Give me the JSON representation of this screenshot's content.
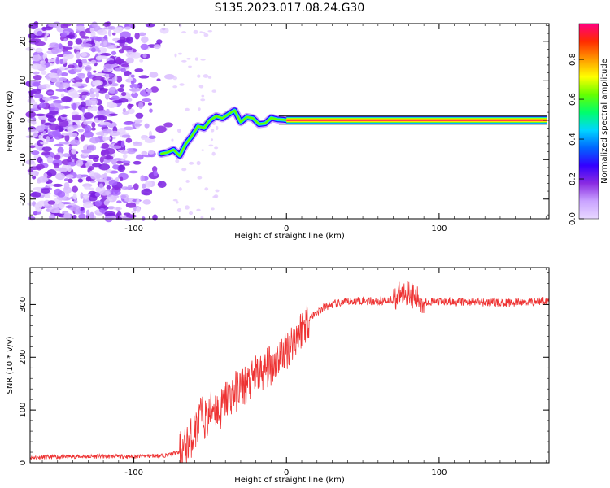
{
  "title": "S135.2023.017.08.24.G30",
  "chart_data": [
    {
      "type": "heatmap",
      "xlabel": "Height of straight line (km)",
      "ylabel": "Frequency (Hz)",
      "xlim": [
        -168,
        172
      ],
      "ylim": [
        -25,
        24.5
      ],
      "xticks": [
        -100,
        0,
        100
      ],
      "yticks": [
        -20,
        -10,
        0,
        10,
        20
      ],
      "colorbar": {
        "label": "Normalized spectral amplitude",
        "range": [
          0,
          1
        ],
        "ticks": [
          "0.0",
          "0.2",
          "0.4",
          "0.6",
          "0.8"
        ],
        "colors": [
          "#e8d8ff",
          "#c9a3ff",
          "#8a2be2",
          "#3300ff",
          "#0066ff",
          "#00d6ff",
          "#00ff6a",
          "#66ff00",
          "#ffff00",
          "#ff9900",
          "#ff2a00",
          "#ff0080"
        ]
      },
      "ridge": {
        "description_points_x_km": [
          -82,
          -78,
          -74,
          -70,
          -66,
          -62,
          -58,
          -54,
          -50,
          -46,
          -42,
          -38,
          -34,
          -30,
          -26,
          -22,
          -18,
          -14,
          -10,
          -6,
          -2,
          0,
          10
        ],
        "frequency_hz": [
          -8.5,
          -8.2,
          -7.5,
          -9,
          -6,
          -4,
          -1.5,
          -2,
          0,
          1,
          0.5,
          1.5,
          2.5,
          -0.5,
          0.8,
          0.5,
          -1,
          -0.8,
          0.6,
          0.2,
          0.1,
          0,
          0
        ]
      }
    },
    {
      "type": "line",
      "xlabel": "Height of straight line (km)",
      "ylabel": "SNR (10 * v/v)",
      "xlim": [
        -168,
        172
      ],
      "ylim": [
        0,
        370
      ],
      "xticks": [
        -100,
        0,
        100
      ],
      "yticks": [
        0,
        100,
        200,
        300
      ],
      "color": "#ee3333",
      "x": [
        -168,
        -140,
        -100,
        -80,
        -70,
        -65,
        -60,
        -56,
        -52,
        -48,
        -44,
        -40,
        -35,
        -30,
        -25,
        -20,
        -15,
        -10,
        -5,
        0,
        5,
        10,
        15,
        20,
        25,
        30,
        40,
        50,
        60,
        70,
        75,
        80,
        85,
        90,
        100,
        120,
        140,
        160,
        172
      ],
      "y": [
        10,
        12,
        12,
        14,
        20,
        35,
        60,
        90,
        80,
        110,
        95,
        120,
        130,
        145,
        150,
        165,
        175,
        185,
        200,
        215,
        235,
        255,
        275,
        285,
        295,
        300,
        305,
        308,
        305,
        310,
        320,
        325,
        310,
        305,
        305,
        305,
        303,
        305,
        308
      ]
    }
  ]
}
